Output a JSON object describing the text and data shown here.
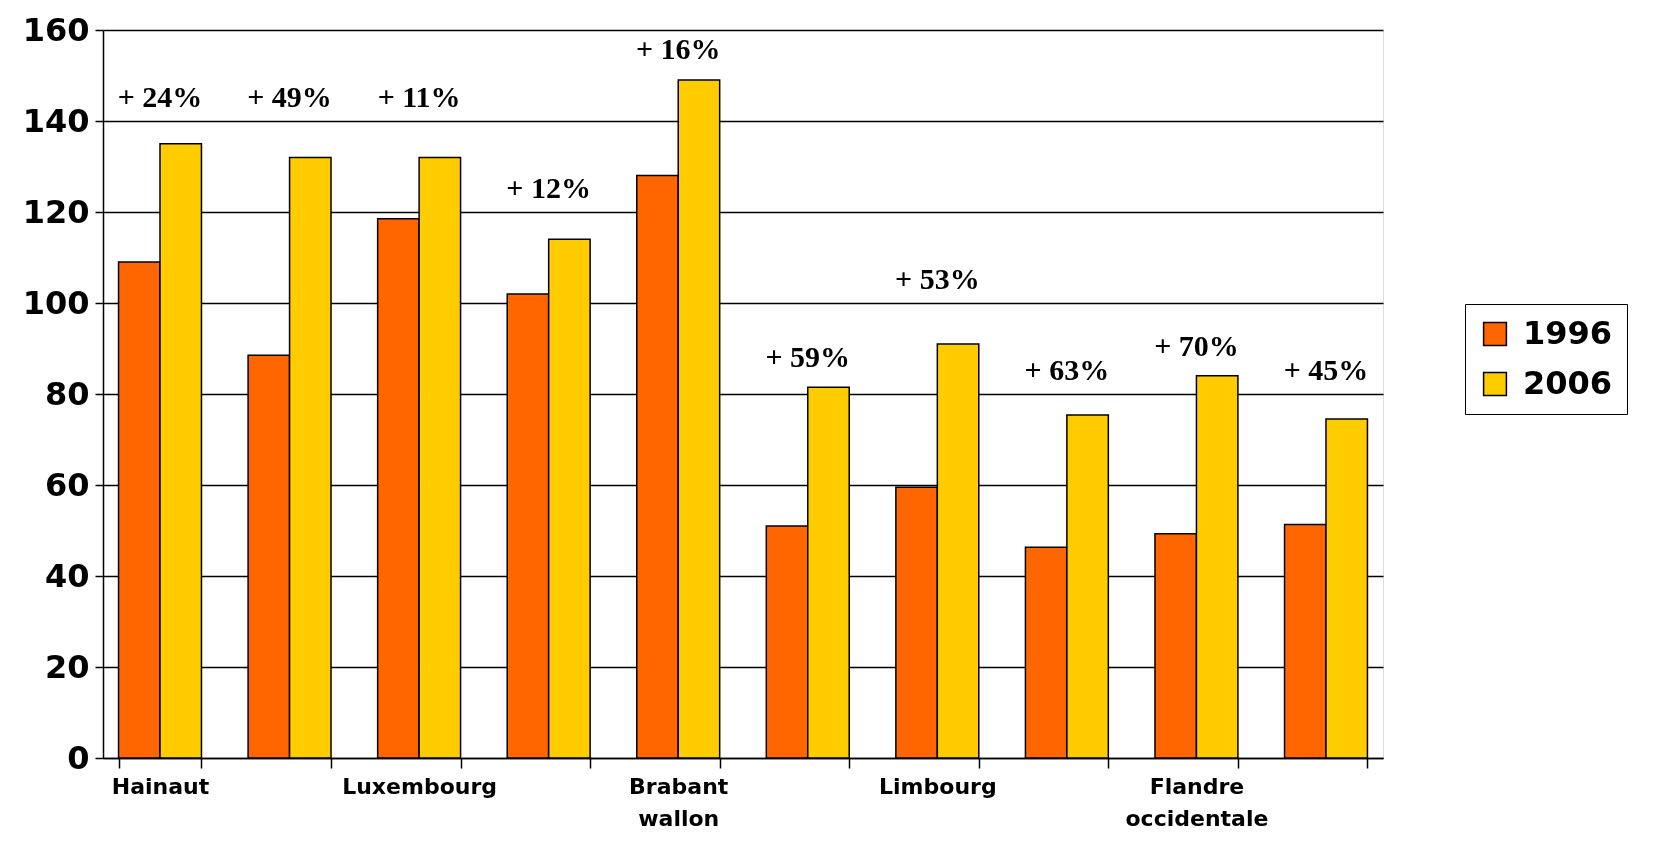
{
  "chart_data": {
    "type": "bar",
    "categories": [
      "Hainaut",
      null,
      "Luxembourg",
      null,
      "Brabant wallon",
      null,
      "Limbourg",
      null,
      "Flandre occidentale",
      null
    ],
    "series": [
      {
        "name": "1996",
        "color": "#ff6600",
        "values": [
          109,
          88.5,
          118.5,
          102,
          128,
          51,
          59.5,
          46.3,
          49.3,
          51.3
        ]
      },
      {
        "name": "2006",
        "color": "#ffcc00",
        "values": [
          135,
          132,
          132,
          114,
          149,
          81.5,
          91,
          75.4,
          84,
          74.5
        ]
      }
    ],
    "ylim": [
      0,
      160
    ],
    "yticks": [
      0,
      20,
      40,
      60,
      80,
      100,
      120,
      140,
      160
    ],
    "grid": "y",
    "legend": "right",
    "annotations": [
      "+ 24%",
      "+ 49%",
      "+ 11%",
      "+ 12%",
      "+ 16%",
      "+ 59%",
      "+ 53%",
      "+ 63%",
      "+ 70%",
      "+ 45%"
    ]
  }
}
